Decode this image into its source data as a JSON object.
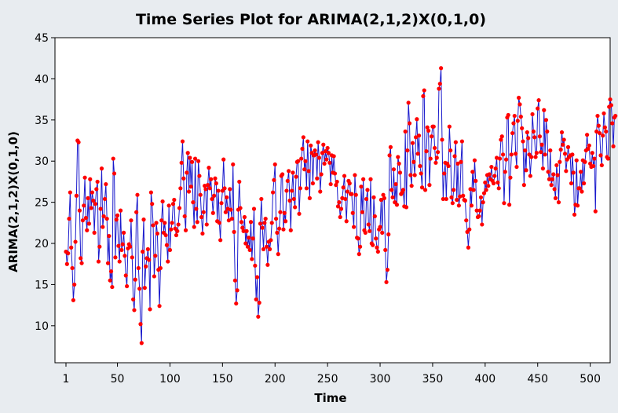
{
  "chart_data": {
    "type": "line",
    "title": "Time Series Plot for ARIMA(2,1,2)X(0,1,0)",
    "xlabel": "Time",
    "ylabel": "ARIMA(2,1,2)X(0,1,0)",
    "xlim": [
      1,
      510
    ],
    "ylim": [
      5.5,
      45
    ],
    "x_ticks": [
      1,
      50,
      100,
      150,
      200,
      250,
      300,
      350,
      400,
      450,
      500
    ],
    "y_ticks": [
      10,
      15,
      20,
      25,
      30,
      35,
      40,
      45
    ],
    "grid": false,
    "line_color": "#1a1acc",
    "marker_color": "#ff0000",
    "background": "#e8ecf0",
    "plot_background": "#ffffff",
    "series": [
      {
        "x_start": 1,
        "x_step": 1,
        "values": [
          19.0,
          17.5,
          18.8,
          23.0,
          26.2,
          19.5,
          17.0,
          13.1,
          15.0,
          20.2,
          25.8,
          32.5,
          32.3,
          24.0,
          18.2,
          17.6,
          22.8,
          24.6,
          28.0,
          23.1,
          21.6,
          25.5,
          22.4,
          27.8,
          24.3,
          26.2,
          25.2,
          21.3,
          24.8,
          26.6,
          27.5,
          17.8,
          19.6,
          24.2,
          29.1,
          22.0,
          23.3,
          25.4,
          27.2,
          23.0,
          17.6,
          20.9,
          15.5,
          16.6,
          14.7,
          30.3,
          28.5,
          18.3,
          22.9,
          23.4,
          19.7,
          17.8,
          24.0,
          19.2,
          19.9,
          21.3,
          18.5,
          16.1,
          14.8,
          19.4,
          19.9,
          19.6,
          22.8,
          18.3,
          13.2,
          11.9,
          15.6,
          23.8,
          25.9,
          17.0,
          14.5,
          10.2,
          7.9,
          19.0,
          22.9,
          14.6,
          17.2,
          18.2,
          19.3,
          18.0,
          12.0,
          26.2,
          24.8,
          22.2,
          16.0,
          18.5,
          22.5,
          21.2,
          16.8,
          12.4,
          17.0,
          22.8,
          25.1,
          21.3,
          22.5,
          21.0,
          19.8,
          17.8,
          24.6,
          19.2,
          21.7,
          22.5,
          24.8,
          25.3,
          21.8,
          21.0,
          21.5,
          22.3,
          24.3,
          26.7,
          29.8,
          32.4,
          27.9,
          23.3,
          21.6,
          28.6,
          31.0,
          26.3,
          30.4,
          26.9,
          29.9,
          25.0,
          22.0,
          30.3,
          24.2,
          22.6,
          30.0,
          28.2,
          25.9,
          23.2,
          21.2,
          23.8,
          27.0,
          26.6,
          22.3,
          27.1,
          29.2,
          26.7,
          27.8,
          25.4,
          23.7,
          25.8,
          27.9,
          27.3,
          22.7,
          26.4,
          22.5,
          20.4,
          24.9,
          26.4,
          30.2,
          26.7,
          23.8,
          25.6,
          24.2,
          22.8,
          26.6,
          24.1,
          23.0,
          29.6,
          21.4,
          15.5,
          12.7,
          14.3,
          24.1,
          27.5,
          24.3,
          22.6,
          21.9,
          21.5,
          23.2,
          20.0,
          21.5,
          19.6,
          20.7,
          19.2,
          22.6,
          18.1,
          20.6,
          24.2,
          17.3,
          13.2,
          15.9,
          11.1,
          12.8,
          22.4,
          25.4,
          21.9,
          19.3,
          22.5,
          23.0,
          19.6,
          17.4,
          20.2,
          19.3,
          20.4,
          22.5,
          26.2,
          27.7,
          29.6,
          23.0,
          21.3,
          18.7,
          21.8,
          23.8,
          28.2,
          28.4,
          21.7,
          23.7,
          22.7,
          26.4,
          27.6,
          28.8,
          25.2,
          21.6,
          26.4,
          28.6,
          25.4,
          24.4,
          28.1,
          29.9,
          30.0,
          23.6,
          26.7,
          30.3,
          31.5,
          32.9,
          29.0,
          30.0,
          26.7,
          32.4,
          28.8,
          25.5,
          31.9,
          31.0,
          27.3,
          30.7,
          31.3,
          30.8,
          27.9,
          32.3,
          30.4,
          26.3,
          28.4,
          31.0,
          32.0,
          29.7,
          31.2,
          30.2,
          31.6,
          31.0,
          29.8,
          27.2,
          30.7,
          28.6,
          30.6,
          28.5,
          27.1,
          27.5,
          24.5,
          25.0,
          23.2,
          24.2,
          25.5,
          26.8,
          28.2,
          25.4,
          22.7,
          26.3,
          27.6,
          27.3,
          26.0,
          26.0,
          23.7,
          22.0,
          28.3,
          25.9,
          20.7,
          20.6,
          18.7,
          19.6,
          26.9,
          23.8,
          27.8,
          21.6,
          21.3,
          25.4,
          26.5,
          22.3,
          21.5,
          27.8,
          20.0,
          19.8,
          25.6,
          23.3,
          20.6,
          19.5,
          19.0,
          21.7,
          22.0,
          25.3,
          21.3,
          25.9,
          25.5,
          19.2,
          15.3,
          16.8,
          21.1,
          30.7,
          31.7,
          26.5,
          25.6,
          29.0,
          25.0,
          27.2,
          24.7,
          30.5,
          29.7,
          28.6,
          26.0,
          26.2,
          26.5,
          24.5,
          33.6,
          24.4,
          31.3,
          37.1,
          34.6,
          28.3,
          27.0,
          32.2,
          29.9,
          28.3,
          32.9,
          35.1,
          30.9,
          33.1,
          29.4,
          28.5,
          26.8,
          37.9,
          38.6,
          26.5,
          31.2,
          34.1,
          33.7,
          27.1,
          30.3,
          33.0,
          34.2,
          34.2,
          31.6,
          29.8,
          30.4,
          31.1,
          38.8,
          39.4,
          41.3,
          32.6,
          25.4,
          28.5,
          29.8,
          25.4,
          29.7,
          29.4,
          34.2,
          31.3,
          25.6,
          24.9,
          26.5,
          30.6,
          32.3,
          25.3,
          29.7,
          24.6,
          25.7,
          29.9,
          32.4,
          25.8,
          25.3,
          25.2,
          22.8,
          21.4,
          19.5,
          21.7,
          26.6,
          24.6,
          28.7,
          26.5,
          30.1,
          27.6,
          24.0,
          23.2,
          23.3,
          24.0,
          25.6,
          22.3,
          25.0,
          26.1,
          27.4,
          26.5,
          28.3,
          27.0,
          28.4,
          27.8,
          29.3,
          27.6,
          27.3,
          28.2,
          29.1,
          30.4,
          27.4,
          26.7,
          30.3,
          32.6,
          33.0,
          30.8,
          24.9,
          28.7,
          30.2,
          35.3,
          35.6,
          24.7,
          28.0,
          30.8,
          33.4,
          34.6,
          35.5,
          30.9,
          29.3,
          34.9,
          37.7,
          36.9,
          35.4,
          34.0,
          32.4,
          27.1,
          31.3,
          28.9,
          33.5,
          32.8,
          30.8,
          28.2,
          30.5,
          35.7,
          33.6,
          32.9,
          30.5,
          31.0,
          36.4,
          37.4,
          33.0,
          31.1,
          32.0,
          29.1,
          36.2,
          30.8,
          35.0,
          33.6,
          28.7,
          27.8,
          31.3,
          27.1,
          27.8,
          28.4,
          26.6,
          25.5,
          29.5,
          28.3,
          25.0,
          29.9,
          31.4,
          33.5,
          32.0,
          32.6,
          30.9,
          28.8,
          30.2,
          31.7,
          30.5,
          30.7,
          27.3,
          30.8,
          28.6,
          23.5,
          24.7,
          30.1,
          24.6,
          26.7,
          26.7,
          28.7,
          26.3,
          30.1,
          27.3,
          29.9,
          31.3,
          33.2,
          31.5,
          31.9,
          29.7,
          29.3,
          31.0,
          29.4,
          30.3,
          23.9,
          33.6,
          35.5,
          34.3,
          33.4,
          30.7,
          29.5,
          33.1,
          35.8,
          34.1,
          33.6,
          30.5,
          30.3,
          36.6,
          37.5,
          36.8,
          34.6,
          31.8,
          35.3,
          35.5
        ]
      }
    ]
  }
}
